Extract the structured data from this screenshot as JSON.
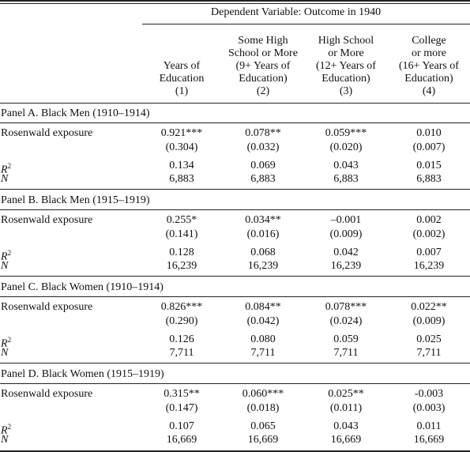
{
  "header": {
    "spanner": "Dependent Variable: Outcome in 1940",
    "columns": [
      {
        "lines": [
          "Years of",
          "Education",
          "(1)"
        ]
      },
      {
        "lines": [
          "Some High",
          "School or More",
          "(9+ Years of",
          "Education)",
          "(2)"
        ]
      },
      {
        "lines": [
          "High School",
          "or More",
          "(12+ Years of",
          "Education)",
          "(3)"
        ]
      },
      {
        "lines": [
          "College",
          "or more",
          "(16+ Years of",
          "Education)",
          "(4)"
        ]
      }
    ]
  },
  "panels": [
    {
      "title": "Panel A. Black Men (1910–1914)",
      "row_label": "Rosenwald exposure",
      "coef": [
        "0.921***",
        "0.078**",
        "0.059***",
        "0.010"
      ],
      "se": [
        "(0.304)",
        "(0.032)",
        "(0.020)",
        "(0.007)"
      ],
      "r2": [
        "0.134",
        "0.069",
        "0.043",
        "0.015"
      ],
      "n": [
        "6,883",
        "6,883",
        "6,883",
        "6,883"
      ]
    },
    {
      "title": "Panel B. Black Men (1915–1919)",
      "row_label": "Rosenwald exposure",
      "coef": [
        "0.255*",
        "0.034**",
        "–0.001",
        "0.002"
      ],
      "se": [
        "(0.141)",
        "(0.016)",
        "(0.009)",
        "(0.002)"
      ],
      "r2": [
        "0.128",
        "0.068",
        "0.042",
        "0.007"
      ],
      "n": [
        "16,239",
        "16,239",
        "16,239",
        "16,239"
      ]
    },
    {
      "title": "Panel C. Black Women (1910–1914)",
      "row_label": "Rosenwald exposure",
      "coef": [
        "0.826***",
        "0.084**",
        "0.078***",
        "0.022**"
      ],
      "se": [
        "(0.290)",
        "(0.042)",
        "(0.024)",
        "(0.009)"
      ],
      "r2": [
        "0.126",
        "0.080",
        "0.059",
        "0.025"
      ],
      "n": [
        "7,711",
        "7,711",
        "7,711",
        "7,711"
      ]
    },
    {
      "title": "Panel D. Black Women (1915–1919)",
      "row_label": "Rosenwald exposure",
      "coef": [
        "0.315**",
        "0.060***",
        "0.025**",
        "-0.003"
      ],
      "se": [
        "(0.147)",
        "(0.018)",
        "(0.011)",
        "(0.003)"
      ],
      "r2": [
        "0.107",
        "0.065",
        "0.043",
        "0.011"
      ],
      "n": [
        "16,669",
        "16,669",
        "16,669",
        "16,669"
      ]
    }
  ],
  "stat_labels": {
    "r2_base": "R",
    "r2_sup": "2",
    "n": "N"
  }
}
